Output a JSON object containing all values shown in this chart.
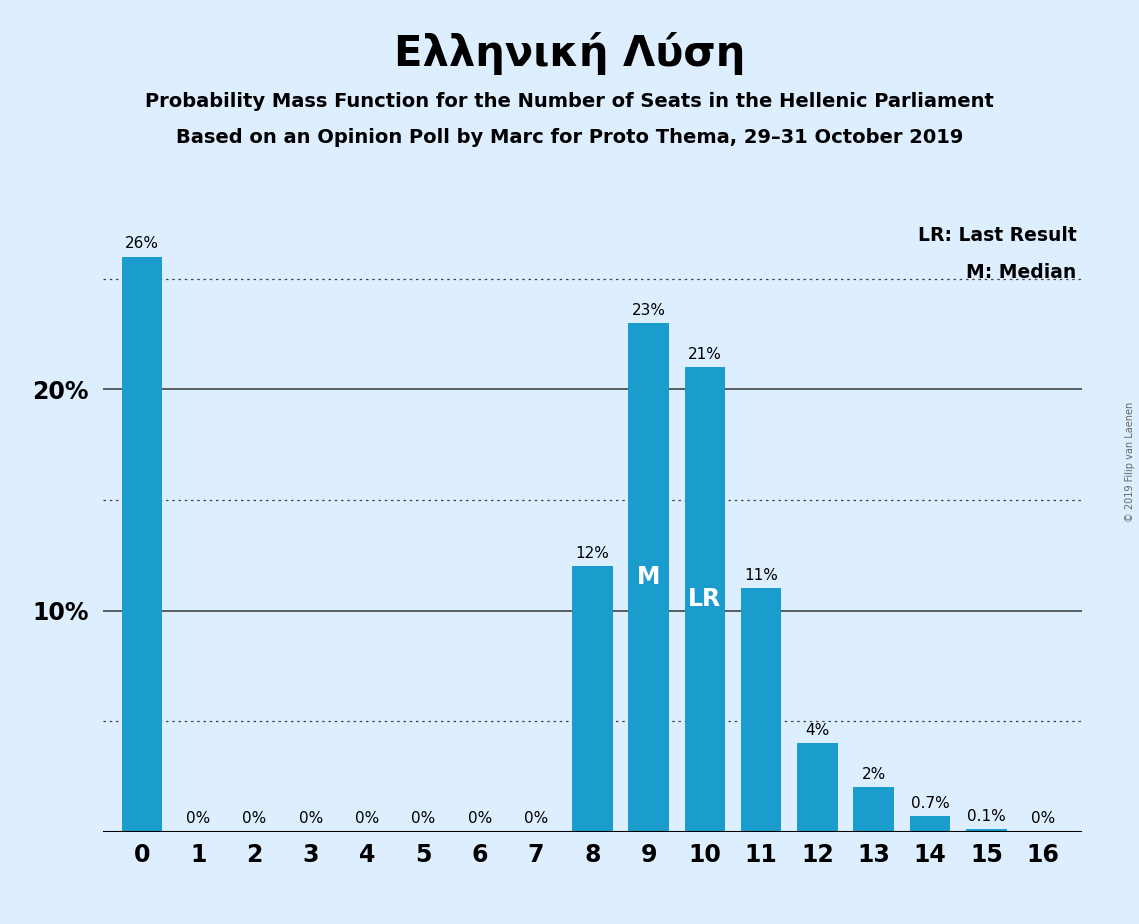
{
  "title": "Ελληνική Λύση",
  "subtitle1": "Probability Mass Function for the Number of Seats in the Hellenic Parliament",
  "subtitle2": "Based on an Opinion Poll by Marc for Proto Thema, 29–31 October 2019",
  "background_color": "#ddeeff",
  "bar_color": "#1a9ccc",
  "categories": [
    0,
    1,
    2,
    3,
    4,
    5,
    6,
    7,
    8,
    9,
    10,
    11,
    12,
    13,
    14,
    15,
    16
  ],
  "values": [
    26,
    0,
    0,
    0,
    0,
    0,
    0,
    0,
    12,
    23,
    21,
    11,
    4,
    2,
    0.7,
    0.1,
    0
  ],
  "labels": [
    "26%",
    "0%",
    "0%",
    "0%",
    "0%",
    "0%",
    "0%",
    "0%",
    "12%",
    "23%",
    "21%",
    "11%",
    "4%",
    "2%",
    "0.7%",
    "0.1%",
    "0%"
  ],
  "yticks": [
    10,
    20
  ],
  "ytick_labels": [
    "10%",
    "20%"
  ],
  "ylim": [
    0,
    28
  ],
  "median_bar": 9,
  "last_result_bar": 10,
  "legend_lr": "LR: Last Result",
  "legend_m": "M: Median",
  "watermark": "© 2019 Filip van Laenen",
  "title_fontsize": 30,
  "subtitle_fontsize": 14,
  "label_fontsize": 11,
  "axis_label_fontsize": 17,
  "grid_color": "#444444",
  "dotted_grid_levels": [
    5,
    15,
    25
  ],
  "solid_grid_levels": [
    10,
    20
  ]
}
